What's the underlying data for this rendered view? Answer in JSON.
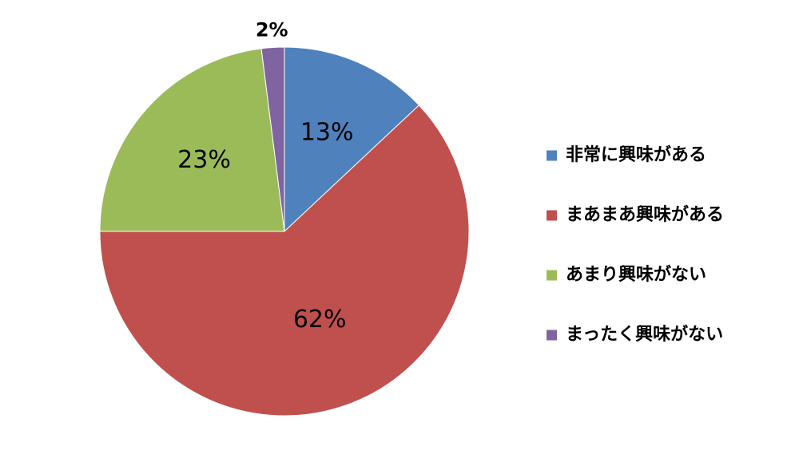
{
  "chart_data": {
    "type": "pie",
    "title": "",
    "categories": [
      "非常に興味がある",
      "まあまあ興味がある",
      "あまり興味がない",
      "まったく興味がない"
    ],
    "values": [
      13,
      62,
      23,
      2
    ],
    "labels": [
      "13%",
      "62%",
      "23%",
      "2%"
    ],
    "colors": [
      "#4f81bd",
      "#c0504d",
      "#9bbb59",
      "#8064a2"
    ],
    "start": "12 o'clock",
    "direction": "clockwise",
    "legend": "right"
  }
}
